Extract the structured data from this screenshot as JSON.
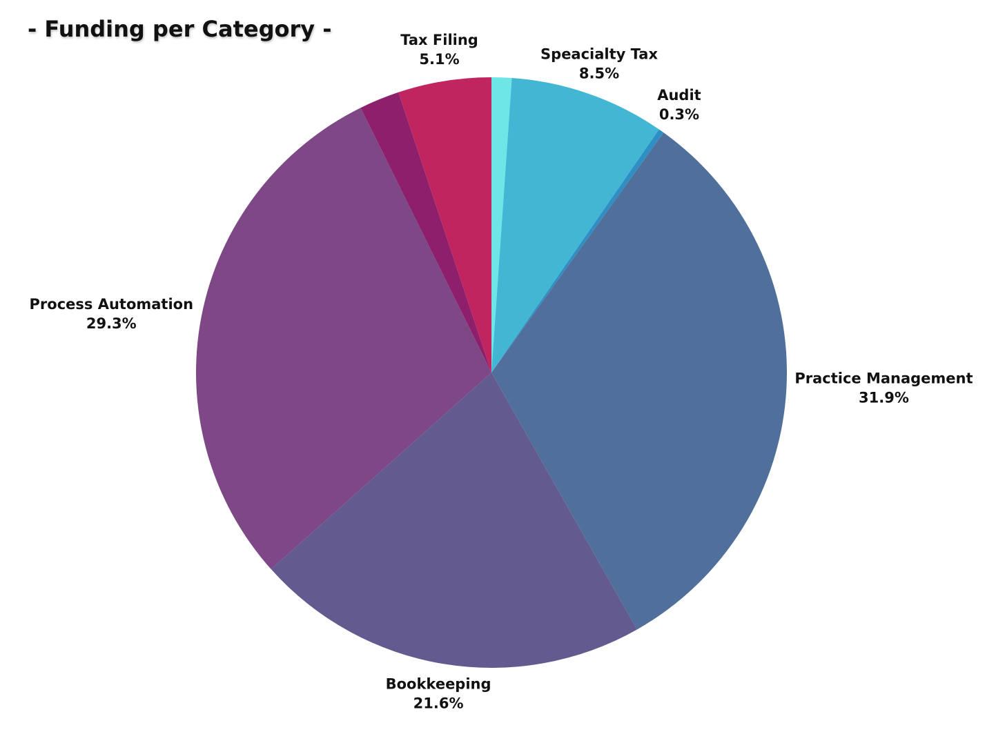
{
  "chart_data": {
    "type": "pie",
    "title": "- Funding per Category -",
    "categories": [
      null,
      "Speacialty Tax",
      "Audit",
      "Practice Management",
      "Bookkeeping",
      "Process Automation",
      null,
      "Tax Filing"
    ],
    "values": [
      1.1,
      8.5,
      0.3,
      31.9,
      21.6,
      29.3,
      2.2,
      5.1
    ],
    "value_labels": [
      null,
      "8.5%",
      "0.3%",
      "31.9%",
      "21.6%",
      "29.3%",
      null,
      "5.1%"
    ],
    "colors": [
      "#6ee6e8",
      "#43b6d4",
      "#2f8fc4",
      "#50709b",
      "#635b90",
      "#7e4887",
      "#8e1f6c",
      "#c0255f"
    ]
  }
}
